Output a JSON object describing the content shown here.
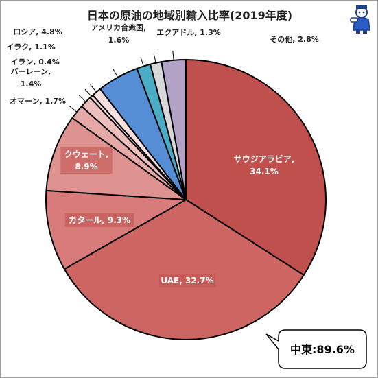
{
  "chart_data": {
    "type": "pie",
    "title": "日本の原油の地域別輸入比率(2019年度)",
    "start": "top",
    "direction": "clockwise",
    "slices": [
      {
        "label": "サウジアラビア",
        "value": 34.1,
        "text1": "サウジアラビア,",
        "text2": "34.1%",
        "color": "#c0504d"
      },
      {
        "label": "UAE",
        "value": 32.7,
        "text1": "UAE, 32.7%",
        "color": "#cd6663"
      },
      {
        "label": "カタール",
        "value": 9.3,
        "text1": "カタール, 9.3%",
        "color": "#d77c7a"
      },
      {
        "label": "クウェート",
        "value": 8.9,
        "text1": "クウェート,",
        "text2": "8.9%",
        "color": "#de9391"
      },
      {
        "label": "オマーン",
        "value": 1.7,
        "text1": "オマーン, 1.7%",
        "color": "#e5a9a8"
      },
      {
        "label": "バーレーン",
        "value": 1.4,
        "text1": "バーレーン,",
        "text2": "1.4%",
        "color": "#ecbfbe"
      },
      {
        "label": "イラン",
        "value": 0.4,
        "text1": "イラン, 0.4%",
        "color": "#f2d2d1"
      },
      {
        "label": "イラク",
        "value": 1.1,
        "text1": "イラク, 1.1%",
        "color": "#f6e0df"
      },
      {
        "label": "ロシア",
        "value": 4.8,
        "text1": "ロシア, 4.8%",
        "color": "#558ed5"
      },
      {
        "label": "アメリカ合衆国",
        "value": 1.6,
        "text1": "アメリカ合衆国,",
        "text2": "1.6%",
        "color": "#4bacc6"
      },
      {
        "label": "エクアドル",
        "value": 1.3,
        "text1": "エクアドル, 1.3%",
        "color": "#d9d9d9"
      },
      {
        "label": "その他",
        "value": 2.8,
        "text1": "その他, 2.8%",
        "color": "#b3a2c7"
      }
    ],
    "callout": {
      "label": "中東",
      "value": "89.6%",
      "text": "中東:89.6%"
    }
  },
  "colors": {
    "border": "#000000",
    "label_box": "#c0504d"
  },
  "mascot_icon": "mascot-character-icon"
}
